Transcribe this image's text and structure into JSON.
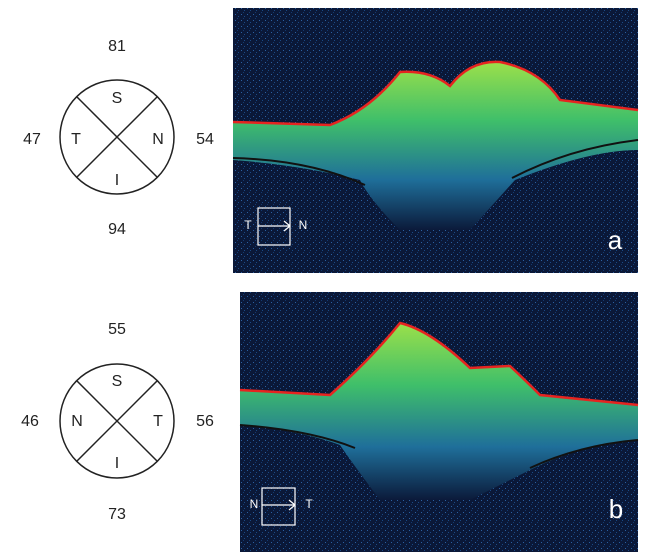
{
  "panels": [
    {
      "letter": "a",
      "quadrant": {
        "superior_value": 81,
        "temporal_value": 47,
        "nasal_value": 54,
        "inferior_value": 94,
        "superior_label": "S",
        "temporal_label": "T",
        "nasal_label": "N",
        "inferior_label": "I"
      },
      "orientation": {
        "left": "T",
        "right": "N"
      }
    },
    {
      "letter": "b",
      "quadrant": {
        "superior_value": 55,
        "temporal_value": 56,
        "nasal_value": 46,
        "inferior_value": 73,
        "superior_label": "S",
        "temporal_label": "T",
        "nasal_label": "N",
        "inferior_label": "I"
      },
      "orientation": {
        "left": "N",
        "right": "T"
      }
    }
  ]
}
